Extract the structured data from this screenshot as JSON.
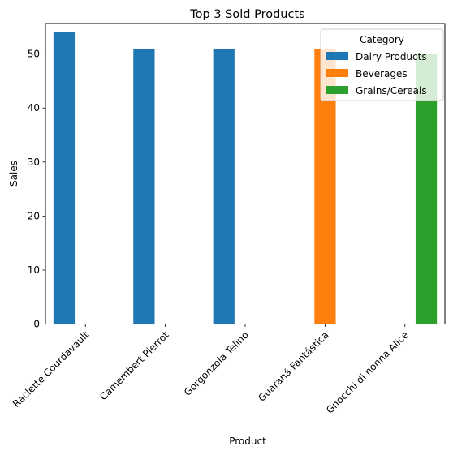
{
  "chart_data": {
    "type": "bar",
    "title": "Top 3 Sold Products",
    "xlabel": "Product",
    "ylabel": "Sales",
    "ylim": [
      0,
      55.65
    ],
    "yticks": [
      0,
      10,
      20,
      30,
      40,
      50
    ],
    "categories": [
      "Raclette Courdavault",
      "Camembert Pierrot",
      "Gorgonzola Telino",
      "Guaraná Fantástica",
      "Gnocchi di nonna Alice"
    ],
    "series": [
      {
        "name": "Dairy Products",
        "color": "#1f77b4",
        "values": [
          54,
          51,
          51,
          null,
          null
        ]
      },
      {
        "name": "Beverages",
        "color": "#ff7f0e",
        "values": [
          null,
          null,
          null,
          51,
          null
        ]
      },
      {
        "name": "Grains/Cereals",
        "color": "#2ca02c",
        "values": [
          null,
          null,
          null,
          null,
          50
        ]
      }
    ],
    "legend": {
      "title": "Category",
      "position": "top-right"
    },
    "grid": false
  }
}
